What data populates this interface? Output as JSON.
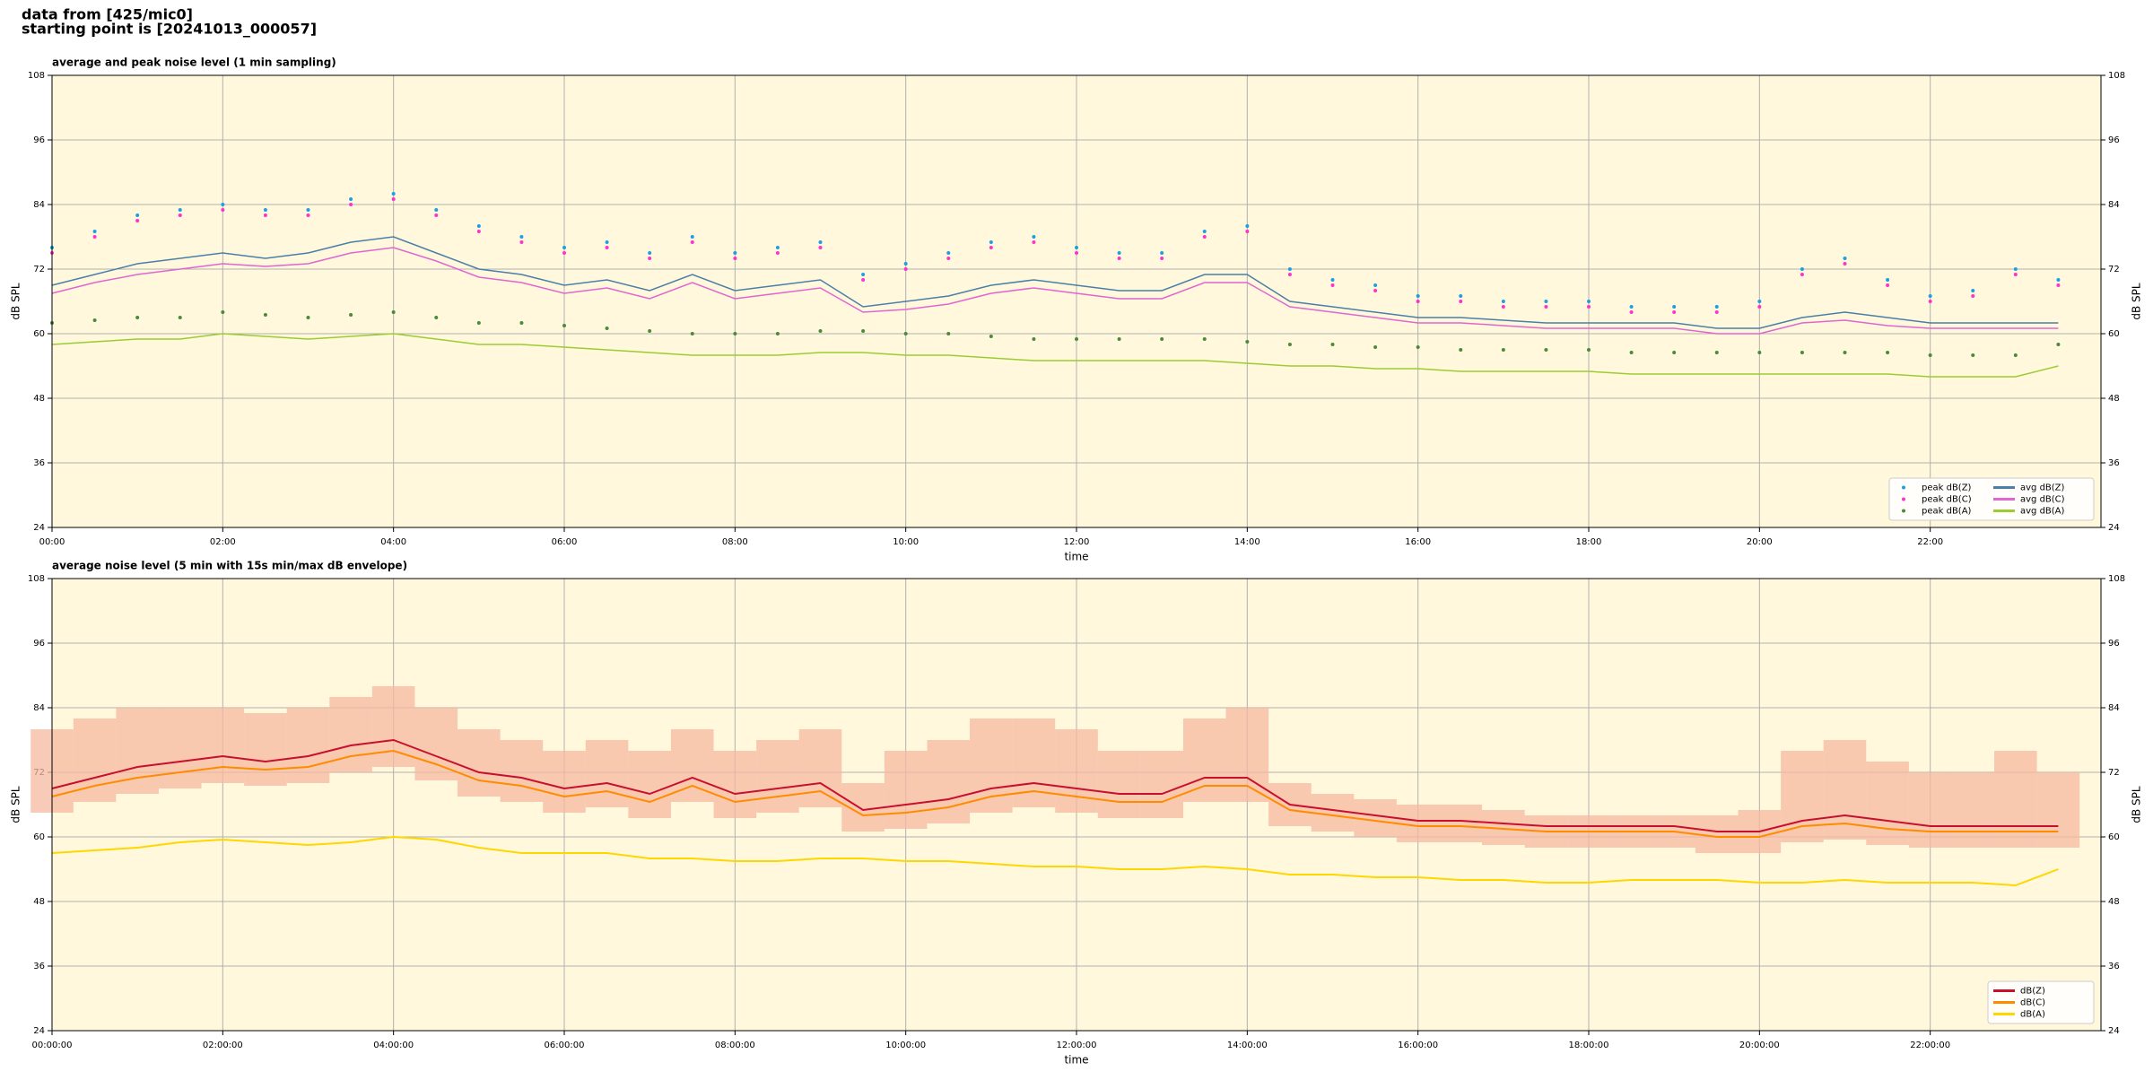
{
  "header": {
    "lines": [
      "data from [425/mic0]",
      "starting point is [20241013_000057]"
    ]
  },
  "chart_data": [
    {
      "type": "line",
      "title": "average and peak noise level (1 min sampling)",
      "xlabel": "time",
      "ylabel": "dB SPL",
      "x": [
        "00:00",
        "00:30",
        "01:00",
        "01:30",
        "02:00",
        "02:30",
        "03:00",
        "03:30",
        "04:00",
        "04:30",
        "05:00",
        "05:30",
        "06:00",
        "06:30",
        "07:00",
        "07:30",
        "08:00",
        "08:30",
        "09:00",
        "09:30",
        "10:00",
        "10:30",
        "11:00",
        "11:30",
        "12:00",
        "12:30",
        "13:00",
        "13:30",
        "14:00",
        "14:30",
        "15:00",
        "15:30",
        "16:00",
        "16:30",
        "17:00",
        "17:30",
        "18:00",
        "18:30",
        "19:00",
        "19:30",
        "20:00",
        "20:30",
        "21:00",
        "21:30",
        "22:00",
        "22:30",
        "23:00",
        "23:30"
      ],
      "xlim": [
        "00:00",
        "24:00"
      ],
      "xticks": [
        "00:00",
        "02:00",
        "04:00",
        "06:00",
        "08:00",
        "10:00",
        "12:00",
        "14:00",
        "16:00",
        "18:00",
        "20:00",
        "22:00"
      ],
      "ylim": [
        24,
        108
      ],
      "yticks": [
        24,
        36,
        48,
        60,
        72,
        84,
        96,
        108
      ],
      "grid": true,
      "legend": "lower right",
      "background": "#fff8dc",
      "series": [
        {
          "name": "peak dB(Z)",
          "type": "scatter",
          "color": "#1f9fe0",
          "values": [
            76,
            79,
            82,
            83,
            84,
            83,
            83,
            85,
            86,
            83,
            80,
            78,
            76,
            77,
            75,
            78,
            75,
            76,
            77,
            71,
            73,
            75,
            77,
            78,
            76,
            75,
            75,
            79,
            80,
            72,
            70,
            69,
            67,
            67,
            66,
            66,
            66,
            65,
            65,
            65,
            66,
            72,
            74,
            70,
            67,
            68,
            72,
            70
          ]
        },
        {
          "name": "peak dB(C)",
          "type": "scatter",
          "color": "#ff33cc",
          "values": [
            75,
            78,
            81,
            82,
            83,
            82,
            82,
            84,
            85,
            82,
            79,
            77,
            75,
            76,
            74,
            77,
            74,
            75,
            76,
            70,
            72,
            74,
            76,
            77,
            75,
            74,
            74,
            78,
            79,
            71,
            69,
            68,
            66,
            66,
            65,
            65,
            65,
            64,
            64,
            64,
            65,
            71,
            73,
            69,
            66,
            67,
            71,
            69
          ]
        },
        {
          "name": "peak dB(A)",
          "type": "scatter",
          "color": "#4a8a3a",
          "values": [
            62,
            62.5,
            63,
            63,
            64,
            63.5,
            63,
            63.5,
            64,
            63,
            62,
            62,
            61.5,
            61,
            60.5,
            60,
            60,
            60,
            60.5,
            60.5,
            60,
            60,
            59.5,
            59,
            59,
            59,
            59,
            59,
            58.5,
            58,
            58,
            57.5,
            57.5,
            57,
            57,
            57,
            57,
            56.5,
            56.5,
            56.5,
            56.5,
            56.5,
            56.5,
            56.5,
            56,
            56,
            56,
            58
          ]
        },
        {
          "name": "avg dB(Z)",
          "type": "line",
          "color": "#4a7fa8",
          "values": [
            69,
            71,
            73,
            74,
            75,
            74,
            75,
            77,
            78,
            75,
            72,
            71,
            69,
            70,
            68,
            71,
            68,
            69,
            70,
            65,
            66,
            67,
            69,
            70,
            69,
            68,
            68,
            71,
            71,
            66,
            65,
            64,
            63,
            63,
            62.5,
            62,
            62,
            62,
            62,
            61,
            61,
            63,
            64,
            63,
            62,
            62,
            62,
            62
          ]
        },
        {
          "name": "avg dB(C)",
          "type": "line",
          "color": "#e066d0",
          "values": [
            67.5,
            69.5,
            71,
            72,
            73,
            72.5,
            73,
            75,
            76,
            73.5,
            70.5,
            69.5,
            67.5,
            68.5,
            66.5,
            69.5,
            66.5,
            67.5,
            68.5,
            64,
            64.5,
            65.5,
            67.5,
            68.5,
            67.5,
            66.5,
            66.5,
            69.5,
            69.5,
            65,
            64,
            63,
            62,
            62,
            61.5,
            61,
            61,
            61,
            61,
            60,
            60,
            62,
            62.5,
            61.5,
            61,
            61,
            61,
            61
          ]
        },
        {
          "name": "avg dB(A)",
          "type": "line",
          "color": "#9acd32",
          "values": [
            58,
            58.5,
            59,
            59,
            60,
            59.5,
            59,
            59.5,
            60,
            59,
            58,
            58,
            57.5,
            57,
            56.5,
            56,
            56,
            56,
            56.5,
            56.5,
            56,
            56,
            55.5,
            55,
            55,
            55,
            55,
            55,
            54.5,
            54,
            54,
            53.5,
            53.5,
            53,
            53,
            53,
            53,
            52.5,
            52.5,
            52.5,
            52.5,
            52.5,
            52.5,
            52.5,
            52,
            52,
            52,
            54
          ]
        }
      ]
    },
    {
      "type": "line",
      "title": "average noise level (5 min with 15s min/max dB envelope)",
      "xlabel": "time",
      "ylabel": "dB SPL",
      "x": [
        "00:00:00",
        "00:30:00",
        "01:00:00",
        "01:30:00",
        "02:00:00",
        "02:30:00",
        "03:00:00",
        "03:30:00",
        "04:00:00",
        "04:30:00",
        "05:00:00",
        "05:30:00",
        "06:00:00",
        "06:30:00",
        "07:00:00",
        "07:30:00",
        "08:00:00",
        "08:30:00",
        "09:00:00",
        "09:30:00",
        "10:00:00",
        "10:30:00",
        "11:00:00",
        "11:30:00",
        "12:00:00",
        "12:30:00",
        "13:00:00",
        "13:30:00",
        "14:00:00",
        "14:30:00",
        "15:00:00",
        "15:30:00",
        "16:00:00",
        "16:30:00",
        "17:00:00",
        "17:30:00",
        "18:00:00",
        "18:30:00",
        "19:00:00",
        "19:30:00",
        "20:00:00",
        "20:30:00",
        "21:00:00",
        "21:30:00",
        "22:00:00",
        "22:30:00",
        "23:00:00",
        "23:30:00"
      ],
      "xlim": [
        "00:00:00",
        "24:00:00"
      ],
      "xticks": [
        "00:00:00",
        "02:00:00",
        "04:00:00",
        "06:00:00",
        "08:00:00",
        "10:00:00",
        "12:00:00",
        "14:00:00",
        "16:00:00",
        "18:00:00",
        "20:00:00",
        "22:00:00"
      ],
      "ylim": [
        24,
        108
      ],
      "yticks": [
        24,
        36,
        48,
        60,
        72,
        84,
        96,
        108
      ],
      "grid": true,
      "legend": "lower right",
      "background": "#fff8dc",
      "band": {
        "color": "#f5b8a0",
        "lower": [
          64.5,
          66.5,
          68,
          69,
          70,
          69.5,
          70,
          72,
          73,
          70.5,
          67.5,
          66.5,
          64.5,
          65.5,
          63.5,
          66.5,
          63.5,
          64.5,
          65.5,
          61,
          61.5,
          62.5,
          64.5,
          65.5,
          64.5,
          63.5,
          63.5,
          66.5,
          66.5,
          62,
          61,
          60,
          59,
          59,
          58.5,
          58,
          58,
          58,
          58,
          57,
          57,
          59,
          59.5,
          58.5,
          58,
          58,
          58,
          58
        ],
        "upper": [
          80,
          82,
          84,
          84,
          84,
          83,
          84,
          86,
          88,
          84,
          80,
          78,
          76,
          78,
          76,
          80,
          76,
          78,
          80,
          70,
          76,
          78,
          82,
          82,
          80,
          76,
          76,
          82,
          84,
          70,
          68,
          67,
          66,
          66,
          65,
          64,
          64,
          64,
          64,
          64,
          65,
          76,
          78,
          74,
          72,
          72,
          76,
          72
        ]
      },
      "series": [
        {
          "name": "dB(Z)",
          "type": "line",
          "color": "#c8102e",
          "values": [
            69,
            71,
            73,
            74,
            75,
            74,
            75,
            77,
            78,
            75,
            72,
            71,
            69,
            70,
            68,
            71,
            68,
            69,
            70,
            65,
            66,
            67,
            69,
            70,
            69,
            68,
            68,
            71,
            71,
            66,
            65,
            64,
            63,
            63,
            62.5,
            62,
            62,
            62,
            62,
            61,
            61,
            63,
            64,
            63,
            62,
            62,
            62,
            62
          ]
        },
        {
          "name": "dB(C)",
          "type": "line",
          "color": "#ff8c00",
          "values": [
            67.5,
            69.5,
            71,
            72,
            73,
            72.5,
            73,
            75,
            76,
            73.5,
            70.5,
            69.5,
            67.5,
            68.5,
            66.5,
            69.5,
            66.5,
            67.5,
            68.5,
            64,
            64.5,
            65.5,
            67.5,
            68.5,
            67.5,
            66.5,
            66.5,
            69.5,
            69.5,
            65,
            64,
            63,
            62,
            62,
            61.5,
            61,
            61,
            61,
            61,
            60,
            60,
            62,
            62.5,
            61.5,
            61,
            61,
            61,
            61
          ]
        },
        {
          "name": "dB(A)",
          "type": "line",
          "color": "#ffd700",
          "values": [
            57,
            57.5,
            58,
            59,
            59.5,
            59,
            58.5,
            59,
            60,
            59.5,
            58,
            57,
            57,
            57,
            56,
            56,
            55.5,
            55.5,
            56,
            56,
            55.5,
            55.5,
            55,
            54.5,
            54.5,
            54,
            54,
            54.5,
            54,
            53,
            53,
            52.5,
            52.5,
            52,
            52,
            51.5,
            51.5,
            52,
            52,
            52,
            51.5,
            51.5,
            52,
            51.5,
            51.5,
            51.5,
            51,
            54
          ]
        }
      ]
    }
  ]
}
